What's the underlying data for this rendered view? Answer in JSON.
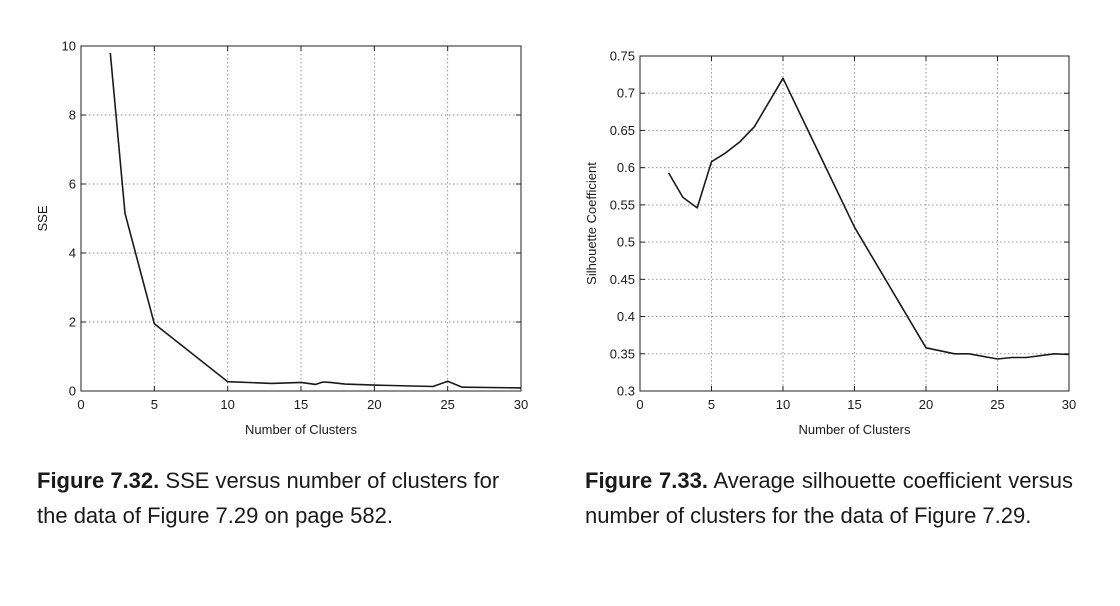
{
  "chart_data": [
    {
      "type": "line",
      "xlabel": "Number of Clusters",
      "ylabel": "SSE",
      "xlim": [
        0,
        30
      ],
      "ylim": [
        0,
        10
      ],
      "xticks": [
        "0",
        "5",
        "10",
        "15",
        "20",
        "25",
        "30"
      ],
      "yticks": [
        "0",
        "2",
        "4",
        "6",
        "8",
        "10"
      ],
      "grid": true,
      "x": [
        2,
        3,
        5,
        10,
        13,
        15,
        16,
        16.5,
        17,
        18,
        20,
        24,
        25,
        26,
        30
      ],
      "y": [
        9.8,
        5.15,
        1.95,
        0.27,
        0.22,
        0.25,
        0.19,
        0.26,
        0.25,
        0.2,
        0.17,
        0.13,
        0.28,
        0.11,
        0.09
      ]
    },
    {
      "type": "line",
      "xlabel": "Number of Clusters",
      "ylabel": "Silhouette Coefficient",
      "xlim": [
        0,
        30
      ],
      "ylim": [
        0.3,
        0.75
      ],
      "xticks": [
        "0",
        "5",
        "10",
        "15",
        "20",
        "25",
        "30"
      ],
      "yticks": [
        "0.3",
        "0.35",
        "0.4",
        "0.45",
        "0.5",
        "0.55",
        "0.6",
        "0.65",
        "0.7",
        "0.75"
      ],
      "grid": true,
      "x": [
        2,
        3,
        4,
        5,
        6,
        7,
        8,
        10,
        15,
        20,
        22,
        23,
        25,
        26,
        27,
        29,
        30
      ],
      "y": [
        0.593,
        0.56,
        0.546,
        0.608,
        0.62,
        0.635,
        0.655,
        0.72,
        0.52,
        0.358,
        0.35,
        0.35,
        0.343,
        0.345,
        0.345,
        0.35,
        0.349
      ]
    }
  ],
  "captions": [
    {
      "label": "Figure 7.32.",
      "text": "SSE versus number of clusters for the data of Figure 7.29 on page 582."
    },
    {
      "label": "Figure 7.33.",
      "text": "Average silhouette coefficient versus number of clusters for the data of Figure 7.29."
    }
  ]
}
